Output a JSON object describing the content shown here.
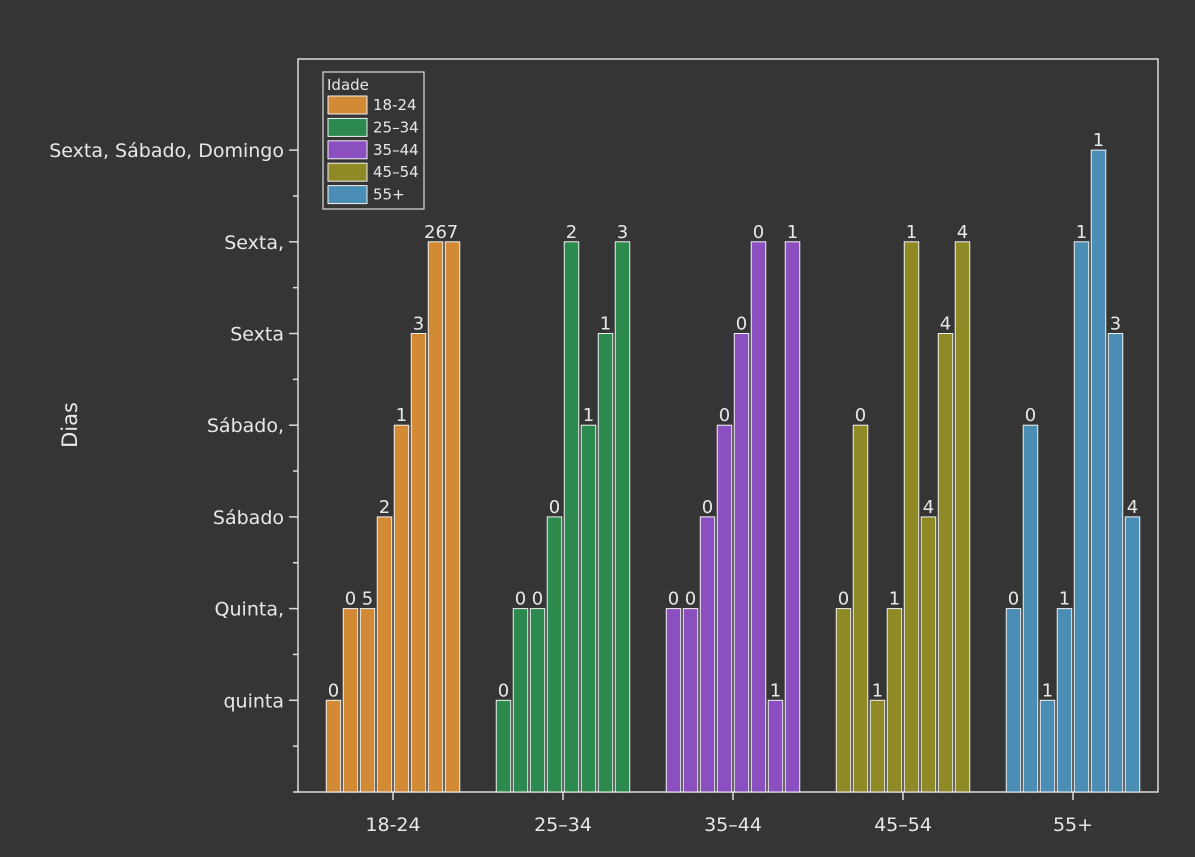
{
  "chart_data": {
    "type": "bar",
    "title": "",
    "xlabel": "",
    "ylabel": "Dias",
    "categories": [
      "18-24",
      "25–34",
      "35–44",
      "45–54",
      "55+"
    ],
    "y_categories": [
      "quinta",
      "Quinta,",
      "Sábado",
      "Sábado,",
      "Sexta",
      "Sexta,",
      "Sexta, Sábado, Domingo"
    ],
    "ylim": [
      0,
      8
    ],
    "legend": {
      "title": "Idade",
      "position": "top-left"
    },
    "series": [
      {
        "name": "18-24",
        "color": "#d38a35",
        "heights": [
          1,
          2,
          2,
          3,
          4,
          5,
          6,
          6
        ],
        "labels": [
          "0",
          "0",
          "5",
          "2",
          "1",
          "3",
          "26",
          "7"
        ]
      },
      {
        "name": "25–34",
        "color": "#2d8a4e",
        "heights": [
          1,
          2,
          2,
          3,
          6,
          4,
          5,
          6
        ],
        "labels": [
          "0",
          "0",
          "0",
          "0",
          "2",
          "1",
          "1",
          "3"
        ]
      },
      {
        "name": "35–44",
        "color": "#8b4fc0",
        "heights": [
          2,
          2,
          3,
          4,
          5,
          6,
          1,
          6
        ],
        "labels": [
          "0",
          "0",
          "0",
          "0",
          "0",
          "0",
          "1",
          "1"
        ]
      },
      {
        "name": "45–54",
        "color": "#8f8a25",
        "heights": [
          2,
          4,
          1,
          2,
          6,
          3,
          5,
          6
        ],
        "labels": [
          "0",
          "0",
          "1",
          "1",
          "1",
          "4",
          "4",
          "4"
        ]
      },
      {
        "name": "55+",
        "color": "#4a8db5",
        "heights": [
          2,
          4,
          1,
          2,
          6,
          7,
          5,
          3
        ],
        "labels": [
          "0",
          "0",
          "1",
          "1",
          "1",
          "1",
          "3",
          "4"
        ]
      }
    ]
  }
}
